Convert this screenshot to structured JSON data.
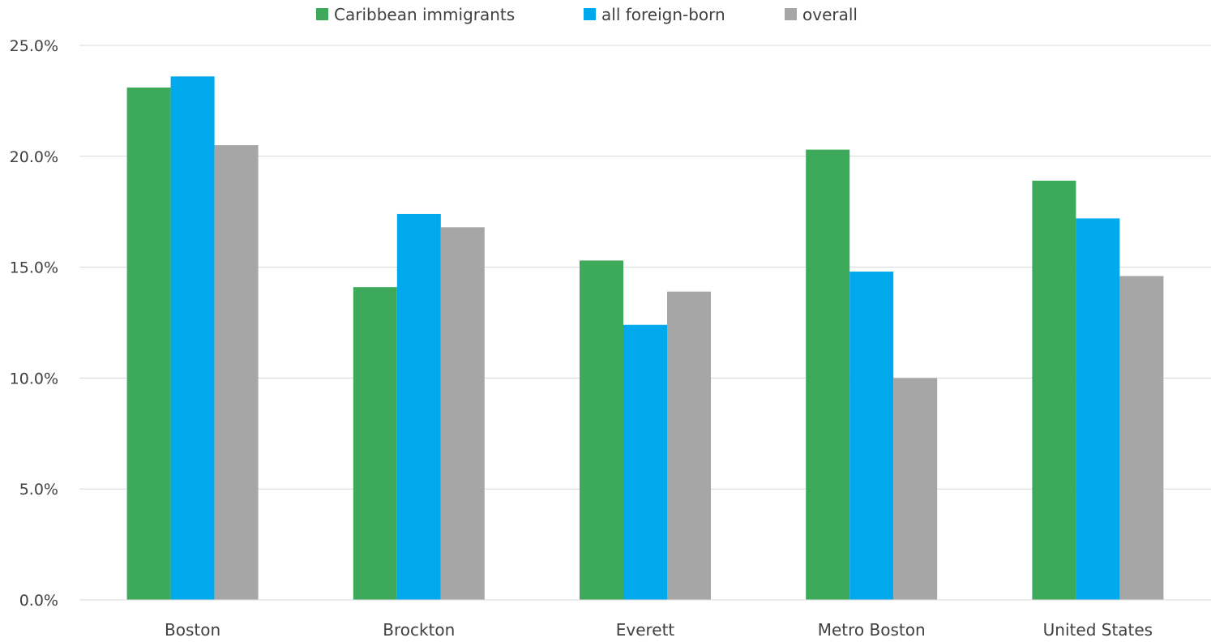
{
  "chart_data": {
    "type": "bar",
    "title": "",
    "xlabel": "",
    "ylabel": "",
    "categories": [
      "Boston",
      "Brockton",
      "Everett",
      "Metro Boston",
      "United States"
    ],
    "series": [
      {
        "name": "Caribbean immigrants",
        "color": "#3da95b",
        "values": [
          23.1,
          14.1,
          15.3,
          20.3,
          18.9
        ]
      },
      {
        "name": "all foreign-born",
        "color": "#00a9ec",
        "values": [
          23.6,
          17.4,
          12.4,
          14.8,
          17.2
        ]
      },
      {
        "name": "overall",
        "color": "#a6a6a6",
        "values": [
          20.5,
          16.8,
          13.9,
          10.0,
          14.6
        ]
      }
    ],
    "ylim": [
      0,
      25
    ],
    "yticks": [
      0,
      5,
      10,
      15,
      20,
      25
    ],
    "ytick_labels": [
      "0.0%",
      "5.0%",
      "10.0%",
      "15.0%",
      "20.0%",
      "25.0%"
    ],
    "grid": true,
    "legend_position": "top-center"
  }
}
